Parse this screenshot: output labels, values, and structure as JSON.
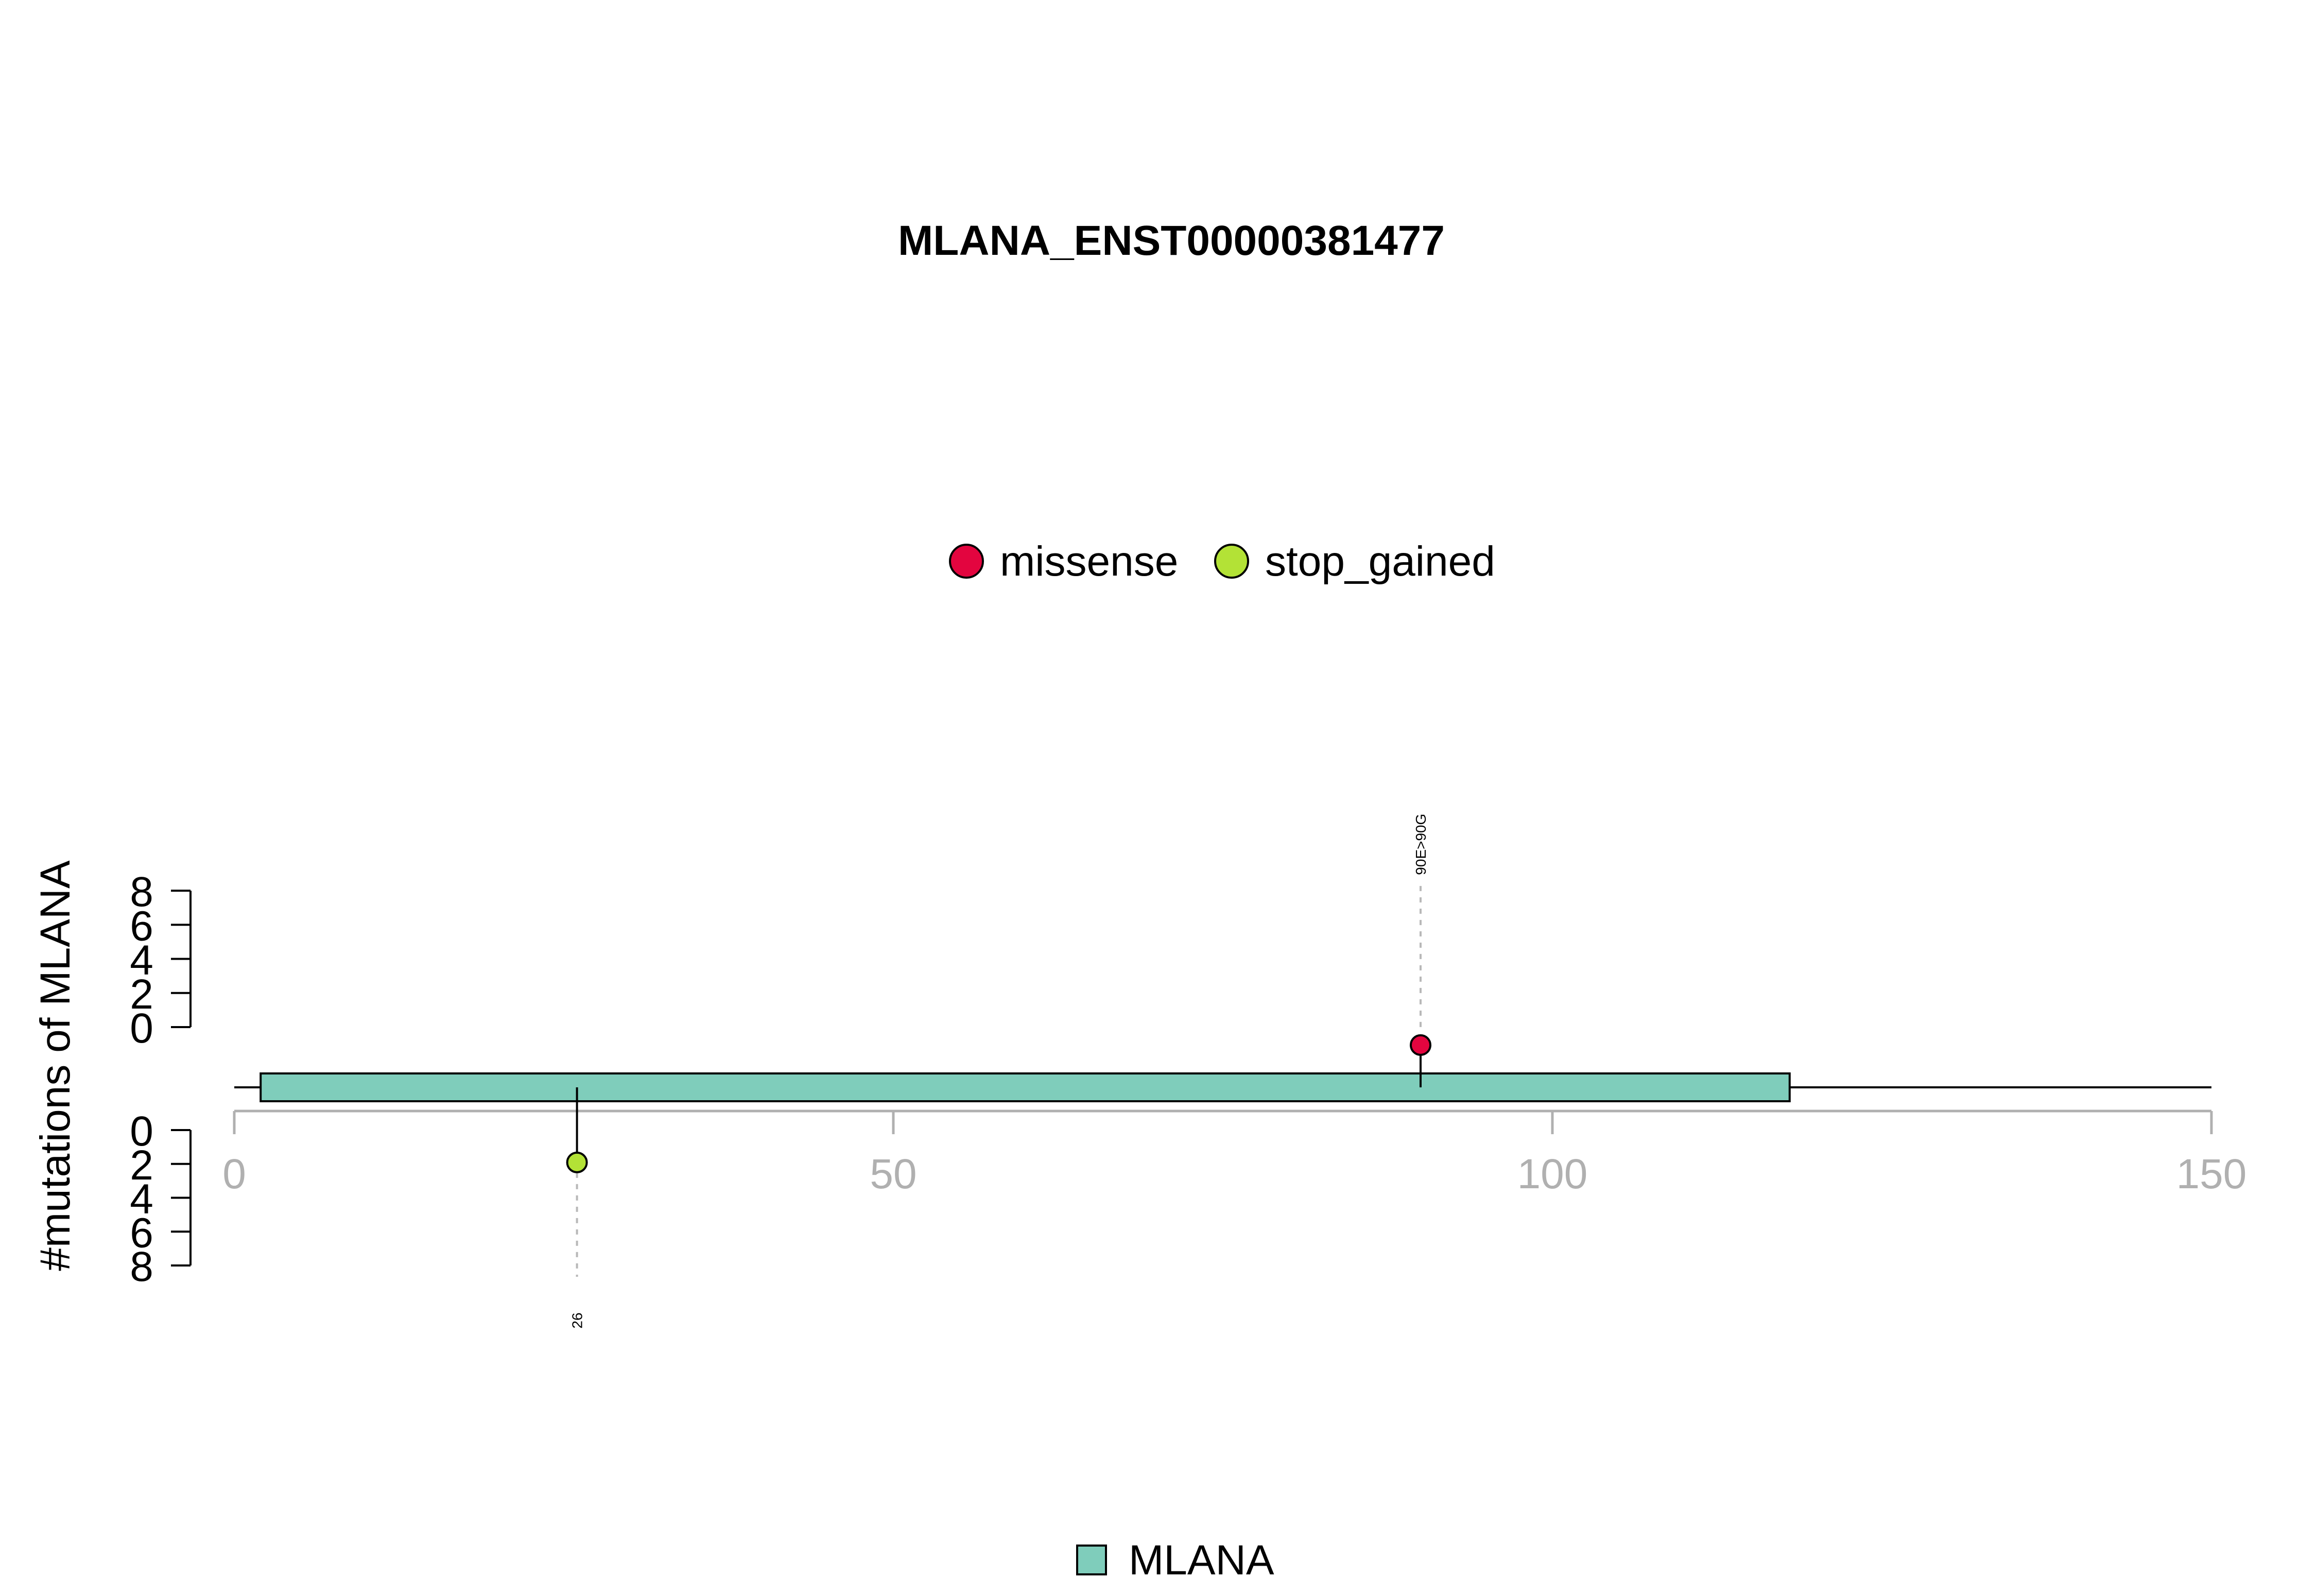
{
  "chart_data": {
    "type": "lollipop",
    "title": "MLANA_ENST00000381477",
    "ylabel": "#mutations of MLANA",
    "xlim": [
      0,
      150
    ],
    "xticks": [
      0,
      50,
      100,
      150
    ],
    "yticks_top": [
      0,
      2,
      4,
      6,
      8
    ],
    "yticks_bottom": [
      0,
      2,
      4,
      6,
      8
    ],
    "ylim": [
      0,
      8
    ],
    "protein_length": 150,
    "domains": [
      {
        "name": "MLANA",
        "start": 2,
        "end": 118,
        "color": "#7fcdbb"
      }
    ],
    "mutation_types": [
      {
        "name": "missense",
        "color": "#e3053f"
      },
      {
        "name": "stop_gained",
        "color": "#b3e236"
      }
    ],
    "mutations": [
      {
        "position": 90,
        "count": 1,
        "type": "missense",
        "label": "90E>90G",
        "side": "top"
      },
      {
        "position": 26,
        "count": 1,
        "type": "stop_gained",
        "label": "26",
        "side": "bottom"
      }
    ],
    "legend_position": "top-center",
    "domain_legend_position": "bottom-center",
    "grid": false
  }
}
